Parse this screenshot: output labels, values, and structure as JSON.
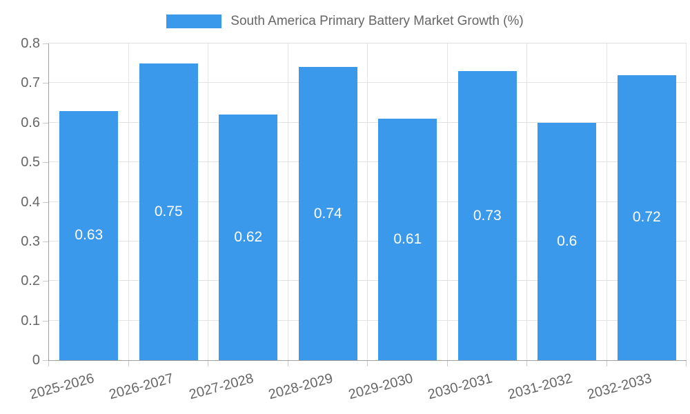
{
  "chart_data": {
    "type": "bar",
    "title": "South America Primary Battery Market Growth (%)",
    "categories": [
      "2025-2026",
      "2026-2027",
      "2027-2028",
      "2028-2029",
      "2029-2030",
      "2030-2031",
      "2031-2032",
      "2032-2033"
    ],
    "values": [
      0.63,
      0.75,
      0.62,
      0.74,
      0.61,
      0.73,
      0.6,
      0.72
    ],
    "value_labels": [
      "0.63",
      "0.75",
      "0.62",
      "0.74",
      "0.61",
      "0.73",
      "0.6",
      "0.72"
    ],
    "xlabel": "",
    "ylabel": "",
    "ylim": [
      0,
      0.8
    ],
    "yticks": [
      "0",
      "0.1",
      "0.2",
      "0.3",
      "0.4",
      "0.5",
      "0.6",
      "0.7",
      "0.8"
    ],
    "grid": "both",
    "legend_position": "top",
    "bar_label_position": "center",
    "colors": {
      "bar": "#3b99ec",
      "grid": "#e3e3e3",
      "axis_border": "#9e9e9e",
      "tick_mark": "#c9c9c9",
      "tick_text": "#666666",
      "legend_text": "#666666",
      "bar_label_text": "#ffffff",
      "background": "#ffffff"
    }
  }
}
